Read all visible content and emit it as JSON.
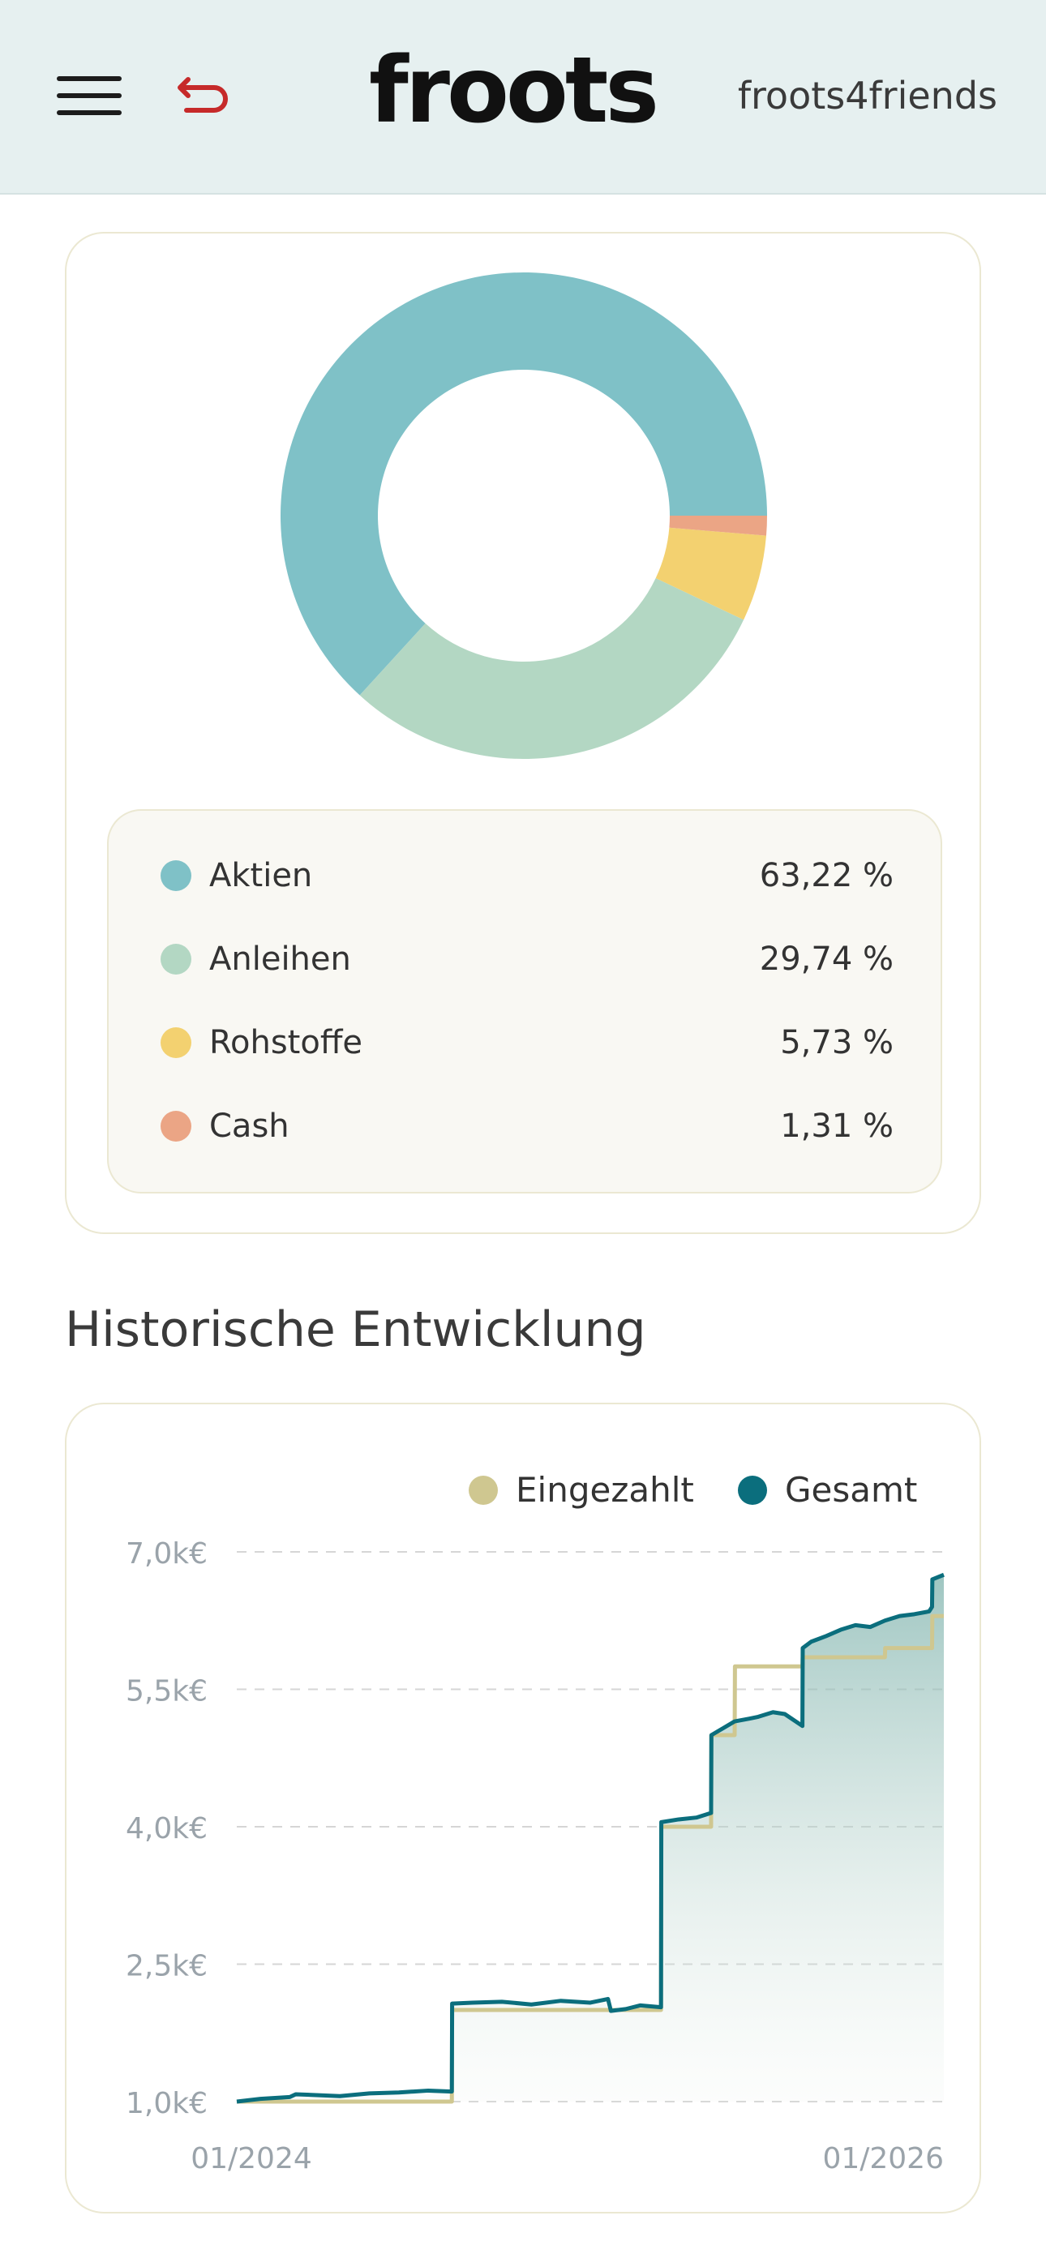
{
  "header": {
    "menu_icon": "hamburger-menu-icon",
    "back_icon": "undo-arrow-icon",
    "logo_text": "froots",
    "friends_label": "froots4friends"
  },
  "allocation": {
    "chart_data": {
      "type": "pie",
      "donut": true,
      "categories": [
        "Aktien",
        "Anleihen",
        "Rohstoffe",
        "Cash"
      ],
      "values": [
        63.22,
        29.74,
        5.73,
        1.31
      ],
      "colors": [
        "#7fc1c7",
        "#b3d7c3",
        "#f3d170",
        "#eba585"
      ]
    },
    "legend": [
      {
        "label": "Aktien",
        "value": "63,22 %",
        "color": "#7fc1c7"
      },
      {
        "label": "Anleihen",
        "value": "29,74 %",
        "color": "#b3d7c3"
      },
      {
        "label": "Rohstoffe",
        "value": "5,73 %",
        "color": "#f3d170"
      },
      {
        "label": "Cash",
        "value": "1,31 %",
        "color": "#eba585"
      }
    ]
  },
  "history": {
    "title": "Historische Entwicklung",
    "chart_data": {
      "type": "line",
      "x_range": [
        "2024-01",
        "2026-01"
      ],
      "x_ticks": [
        "01/2024",
        "01/2026"
      ],
      "y_ticks": [
        "7,0k€",
        "5,5k€",
        "4,0k€",
        "2,5k€",
        "1,0k€"
      ],
      "y_tick_values": [
        7000,
        5500,
        4000,
        2500,
        1000
      ],
      "ylim": [
        1000,
        7000
      ],
      "grid": true,
      "legend_placement": "top-right",
      "series": [
        {
          "name": "Eingezahlt",
          "color": "#cfc790",
          "x_months": [
            0,
            7.3,
            7.31,
            14.4,
            14.41,
            16.1,
            16.11,
            16.9,
            16.91,
            19.2,
            19.21,
            22.0,
            22.01,
            23.6,
            23.61,
            24
          ],
          "values": [
            1000,
            1000,
            2000,
            2000,
            4000,
            4000,
            5000,
            5000,
            5750,
            5750,
            5850,
            5850,
            5950,
            5950,
            6300,
            6300
          ]
        },
        {
          "name": "Gesamt",
          "color": "#0b6e7d",
          "x_months": [
            0,
            0.8,
            1.8,
            2.0,
            3.5,
            4.5,
            5.5,
            6.5,
            7.3,
            7.31,
            8.0,
            9.0,
            10.0,
            11.0,
            12.0,
            12.6,
            12.7,
            13.2,
            13.7,
            14.4,
            14.41,
            15.0,
            15.6,
            16.1,
            16.11,
            16.9,
            17.4,
            17.7,
            18.2,
            18.6,
            19.2,
            19.21,
            19.5,
            20.0,
            20.5,
            21.0,
            21.5,
            22.0,
            22.5,
            23.0,
            23.5,
            23.6,
            23.61,
            24
          ],
          "values": [
            1000,
            1030,
            1050,
            1080,
            1060,
            1090,
            1100,
            1120,
            1110,
            2070,
            2080,
            2090,
            2060,
            2100,
            2080,
            2120,
            1990,
            2010,
            2050,
            2030,
            4050,
            4080,
            4100,
            4150,
            5000,
            5150,
            5180,
            5200,
            5250,
            5230,
            5100,
            5950,
            6020,
            6080,
            6150,
            6200,
            6180,
            6250,
            6300,
            6320,
            6350,
            6400,
            6700,
            6750
          ]
        }
      ]
    }
  }
}
